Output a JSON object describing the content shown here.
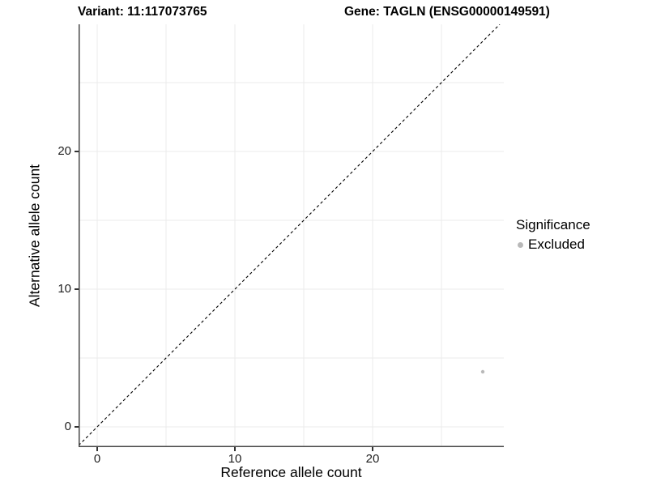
{
  "header": {
    "variant_title": "Variant: 11:117073765",
    "gene_title": "Gene: TAGLN (ENSG00000149591)"
  },
  "legend": {
    "title": "Significance",
    "items": [
      {
        "label": "Excluded",
        "swatch_color": "#b9b9b9"
      }
    ]
  },
  "chart_data": {
    "type": "scatter",
    "title": "Variant: 11:117073765 / Gene: TAGLN (ENSG00000149591)",
    "xlabel": "Reference allele count",
    "ylabel": "Alternative allele count",
    "xlim": [
      -1.35,
      30.9
    ],
    "ylim": [
      -1.45,
      29.2
    ],
    "x_major_ticks": [
      0,
      10,
      20
    ],
    "y_major_ticks": [
      0,
      10,
      20
    ],
    "x_minor_gridlines": [
      5,
      15,
      25
    ],
    "y_minor_gridlines": [
      5,
      15,
      25
    ],
    "grid": true,
    "legend_position": "right",
    "series": [
      {
        "name": "Excluded",
        "color": "#b9b9b9",
        "points": [
          {
            "x": 28,
            "y": 4
          }
        ]
      }
    ],
    "reference_line": {
      "equation": "y = x",
      "style": "dashed",
      "color": "#000000"
    }
  },
  "colors": {
    "background": "#ffffff",
    "gridline": "#ebebeb",
    "axis_line": "#474747",
    "tick_mark": "#333333",
    "tick_label": "#1f1f1f",
    "point": "#b9b9b9"
  }
}
